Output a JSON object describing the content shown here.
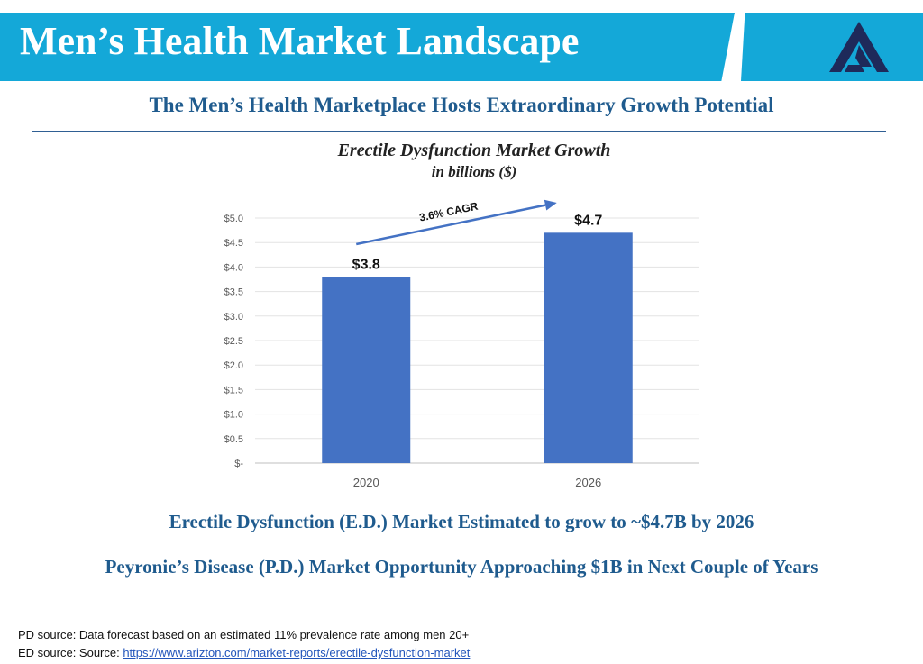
{
  "header": {
    "title": "Men’s Health Market Landscape"
  },
  "subtitle": "The Men’s Health Marketplace Hosts Extraordinary Growth Potential",
  "chart_data": {
    "type": "bar",
    "title": "Erectile Dysfunction Market Growth",
    "subtitle": "in billions ($)",
    "categories": [
      "2020",
      "2026"
    ],
    "values": [
      3.8,
      4.7
    ],
    "data_labels": [
      "$3.8",
      "$4.7"
    ],
    "y_ticks": [
      0,
      0.5,
      1.0,
      1.5,
      2.0,
      2.5,
      3.0,
      3.5,
      4.0,
      4.5,
      5.0
    ],
    "y_tick_labels": [
      "$-",
      "$0.5",
      "$1.0",
      "$1.5",
      "$2.0",
      "$2.5",
      "$3.0",
      "$3.5",
      "$4.0",
      "$4.5",
      "$5.0"
    ],
    "ylim": [
      0,
      5.0
    ],
    "grid": true,
    "annotation": "3.6% CAGR",
    "bar_color": "#4472c4",
    "arrow_color": "#4472c4"
  },
  "headlines": [
    "Erectile Dysfunction (E.D.) Market Estimated to grow to ~$4.7B by 2026",
    "Peyronie’s Disease (P.D.) Market Opportunity Approaching $1B in Next Couple of Years"
  ],
  "footnotes": {
    "pd_source": "PD source: Data forecast based on an estimated 11% prevalence rate among men 20+",
    "ed_source_prefix": "ED source: Source: ",
    "ed_source_link": "https://www.arizton.com/market-reports/erectile-dysfunction-market"
  },
  "colors": {
    "header_band": "#14a8d8",
    "headline_text": "#1f5b8e",
    "logo": "#1e2a5a"
  },
  "icons": {
    "logo": "company-logo-icon"
  }
}
